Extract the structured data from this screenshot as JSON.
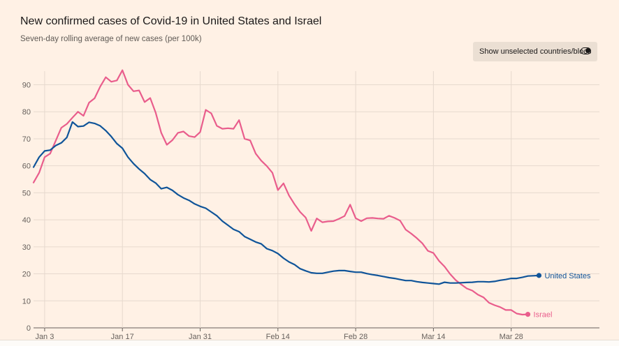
{
  "chart_data": {
    "type": "line",
    "title": "New confirmed cases of Covid-19 in United States and Israel",
    "subtitle": "Seven-day rolling average of new cases (per 100k)",
    "xlabel": "",
    "ylabel": "",
    "ylim": [
      0,
      95
    ],
    "yticks": [
      0,
      10,
      20,
      30,
      40,
      50,
      60,
      70,
      80,
      90
    ],
    "x_start": "Jan 1",
    "x_end": "Apr 1",
    "xticks": [
      {
        "label": "Jan 3",
        "day": 2
      },
      {
        "label": "Jan 17",
        "day": 16
      },
      {
        "label": "Jan 31",
        "day": 30
      },
      {
        "label": "Feb 14",
        "day": 44
      },
      {
        "label": "Feb 28",
        "day": 58
      },
      {
        "label": "Mar 14",
        "day": 72
      },
      {
        "label": "Mar 28",
        "day": 86
      }
    ],
    "grid": true,
    "series": [
      {
        "name": "United States",
        "label": "United States",
        "color": "#0f5499",
        "values": [
          59.5,
          63.2,
          65.5,
          65.8,
          67.5,
          68.5,
          70.5,
          76.2,
          74.5,
          74.7,
          76.1,
          75.7,
          74.8,
          73,
          70.8,
          68.2,
          66.5,
          63.2,
          60.8,
          58.8,
          57.1,
          54.9,
          53.6,
          51.5,
          52,
          50.9,
          49.3,
          48.1,
          47.2,
          45.9,
          45,
          44.3,
          42.9,
          41.5,
          39.5,
          38,
          36.5,
          35.6,
          33.8,
          32.8,
          31.8,
          31.1,
          29.3,
          28.6,
          27.5,
          25.8,
          24.4,
          23.4,
          21.9,
          21.1,
          20.4,
          20.2,
          20.2,
          20.6,
          21,
          21.2,
          21.2,
          20.9,
          20.6,
          20.6,
          20.1,
          19.7,
          19.4,
          19,
          18.6,
          18.3,
          17.9,
          17.5,
          17.5,
          17.1,
          16.8,
          16.6,
          16.4,
          16.2,
          16.9,
          16.6,
          16.6,
          16.7,
          16.8,
          16.9,
          17.1,
          17.1,
          17,
          17.2,
          17.6,
          17.9,
          18.3,
          18.3,
          18.7,
          19.2,
          19.3,
          19.4
        ]
      },
      {
        "name": "Israel",
        "label": "Israel",
        "color": "#e95d8c",
        "values": [
          53.8,
          57.4,
          63.2,
          64.5,
          69.3,
          74.1,
          75.5,
          77.8,
          80,
          78.5,
          83.4,
          85,
          89.3,
          92.8,
          91.1,
          91.6,
          95.4,
          90,
          87.6,
          87.9,
          83.6,
          85.1,
          79.6,
          72.2,
          67.8,
          69.5,
          72.2,
          72.7,
          71,
          70.6,
          72.5,
          80.7,
          79.4,
          74.8,
          73.7,
          73.9,
          73.7,
          76.9,
          70,
          69.4,
          64.5,
          61.9,
          59.9,
          57.4,
          51,
          53.5,
          49,
          45.7,
          42.9,
          40.8,
          35.9,
          40.5,
          39.1,
          39.4,
          39.5,
          40.4,
          41.4,
          45.6,
          40.6,
          39.5,
          40.6,
          40.7,
          40.5,
          40.4,
          41.5,
          40.7,
          39.7,
          36.4,
          34.9,
          33.2,
          31.3,
          28.5,
          27.7,
          24.8,
          22.7,
          19.9,
          17.7,
          16.1,
          14.6,
          13.8,
          12.3,
          11.3,
          9.3,
          8.4,
          7.7,
          6.6,
          6.6,
          5.3,
          4.9,
          5
        ]
      }
    ]
  },
  "controls": {
    "toggle_label": "Show unselected countries/blocs",
    "toggle_state": "on"
  }
}
